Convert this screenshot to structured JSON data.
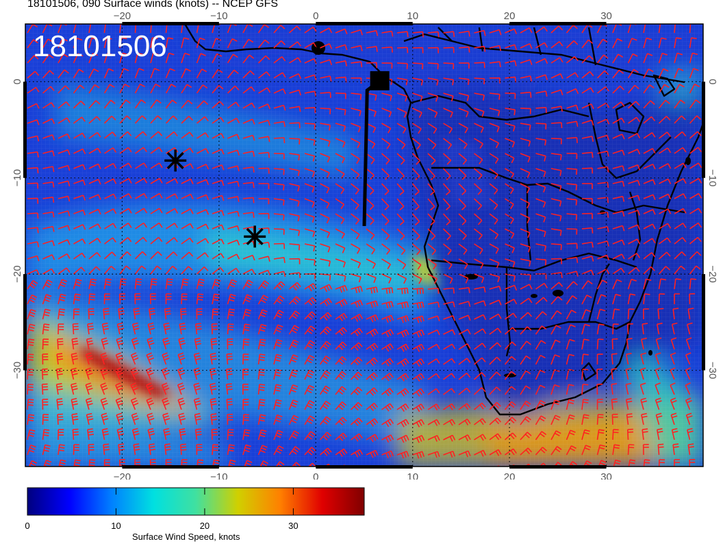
{
  "title": "18101506, 090 Surface winds (knots) -- NCEP GFS",
  "stamp": "18101506",
  "map": {
    "lon_range": [
      -30,
      40
    ],
    "lat_range": [
      -40,
      6
    ],
    "lon_ticks": [
      -20,
      -10,
      0,
      10,
      20,
      30
    ],
    "lat_ticks": [
      0,
      -10,
      -20,
      -30
    ],
    "lon_tick_labels": [
      "−20",
      "−10",
      "0",
      "10",
      "20",
      "30"
    ],
    "lat_tick_labels": [
      "0",
      "−10",
      "−20",
      "−30"
    ],
    "barb_color": "#ff2020",
    "markers": [
      {
        "type": "asterisk",
        "lon": -14.5,
        "lat": -8.2
      },
      {
        "type": "asterisk",
        "lon": -6.3,
        "lat": -16.1
      }
    ],
    "flight_track": {
      "start": [
        5,
        -15
      ],
      "turn": [
        5.3,
        -0.9
      ],
      "end": [
        6.5,
        0
      ]
    },
    "base_marker": {
      "type": "square",
      "lon": 6.6,
      "lat": 0.1
    }
  },
  "colorbar": {
    "label": "Surface Wind Speed, knots",
    "min": 0,
    "max": 38,
    "tick_values": [
      0,
      10,
      20,
      30
    ],
    "tick_labels": [
      "0",
      "10",
      "20",
      "30"
    ],
    "colors": [
      "#00007f",
      "#0000ff",
      "#0080ff",
      "#00e0e0",
      "#40e0a0",
      "#d0d000",
      "#ff8000",
      "#e00000",
      "#800000"
    ]
  }
}
